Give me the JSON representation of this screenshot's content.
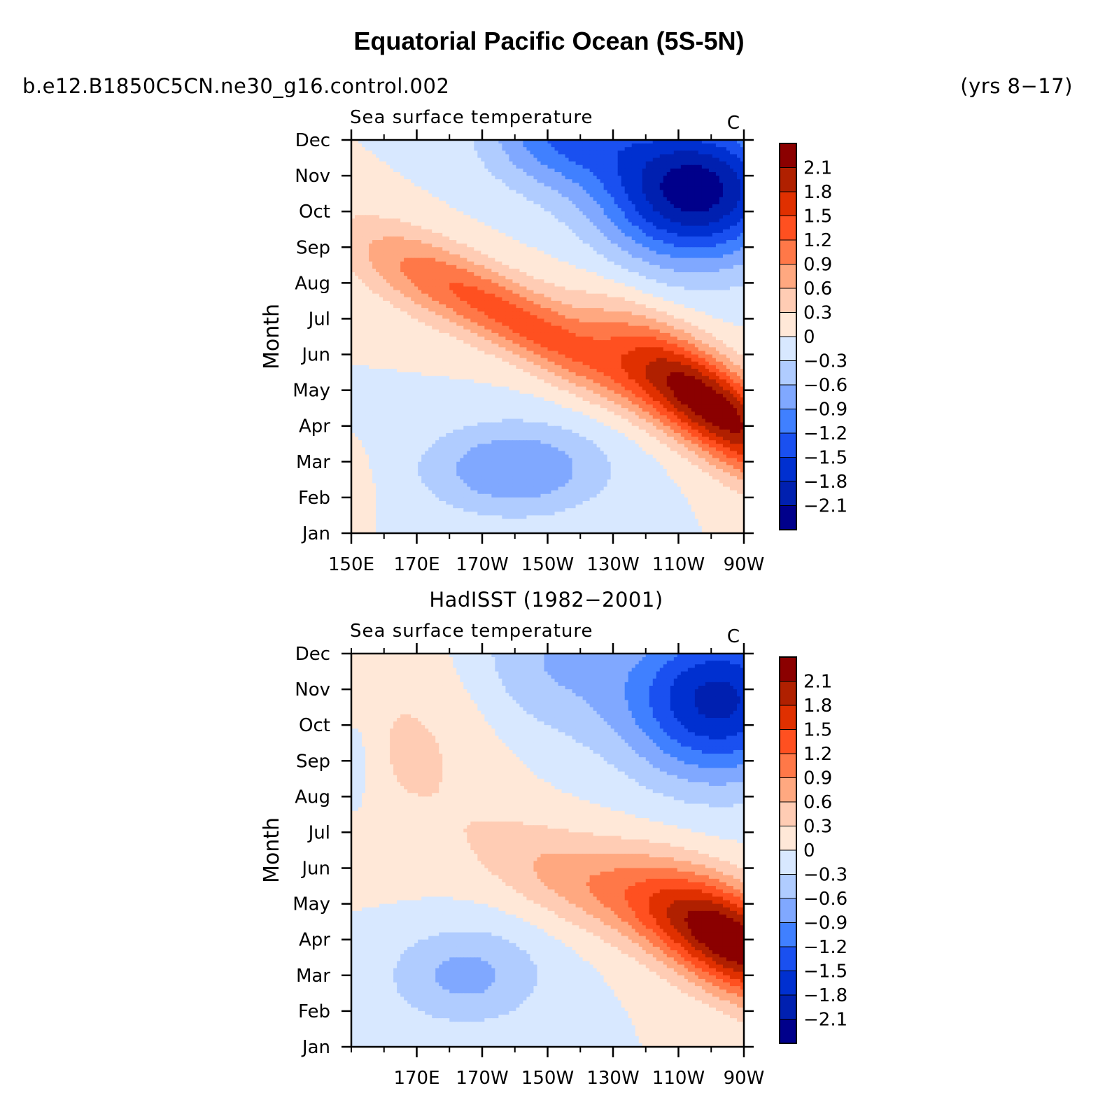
{
  "title": "Equatorial Pacific Ocean (5S-5N)",
  "case_name": "b.e12.B1850C5CN.ne30_g16.control.002",
  "years_label": "(yrs 8−17)",
  "obs_title": "HadISST (1982−2001)",
  "colors": {
    "levels": [
      "#00008b",
      "#0020b0",
      "#0030d0",
      "#1a50f0",
      "#4080ff",
      "#80a8ff",
      "#b0ccff",
      "#d8e8ff",
      "#ffe8d8",
      "#ffccb4",
      "#ffa880",
      "#ff7848",
      "#ff5020",
      "#e03000",
      "#b02000",
      "#8b0000"
    ]
  },
  "chart_data": [
    {
      "type": "heatmap",
      "name": "model",
      "subtitle_left": "Sea surface temperature",
      "subtitle_right": "C",
      "ylabel": "Month",
      "xlabel": "",
      "x_ticks": [
        "150E",
        "170E",
        "170W",
        "150W",
        "130W",
        "110W",
        "90W"
      ],
      "x_tick_values": [
        150,
        170,
        190,
        210,
        230,
        250,
        270
      ],
      "xlim": [
        150,
        270
      ],
      "y_ticks": [
        "Jan",
        "Feb",
        "Mar",
        "Apr",
        "May",
        "Jun",
        "Jul",
        "Aug",
        "Sep",
        "Oct",
        "Nov",
        "Dec"
      ],
      "colorbar_labels": [
        "2.1",
        "1.8",
        "1.5",
        "1.2",
        "0.9",
        "0.6",
        "0.3",
        "0",
        "−0.3",
        "−0.6",
        "−0.9",
        "−1.2",
        "−1.5",
        "−1.8",
        "−2.1"
      ],
      "levels": [
        -2.1,
        -1.8,
        -1.5,
        -1.2,
        -0.9,
        -0.6,
        -0.3,
        0,
        0.3,
        0.6,
        0.9,
        1.2,
        1.5,
        1.8,
        2.1
      ],
      "features": [
        {
          "lon": 260,
          "month": 3.6,
          "amp": 2.3,
          "lon_width": 30,
          "month_width": 1.4,
          "tilt": -0.06
        },
        {
          "lon": 208,
          "month": 5.6,
          "amp": 1.2,
          "lon_width": 34,
          "month_width": 1.1,
          "tilt": -0.05
        },
        {
          "lon": 170,
          "month": 7.2,
          "amp": 0.7,
          "lon_width": 26,
          "month_width": 1.2,
          "tilt": -0.04
        },
        {
          "lon": 255,
          "month": 9.6,
          "amp": -2.3,
          "lon_width": 28,
          "month_width": 2.0,
          "tilt": 0
        },
        {
          "lon": 215,
          "month": 11.3,
          "amp": -1.2,
          "lon_width": 24,
          "month_width": 1.6,
          "tilt": 0
        },
        {
          "lon": 200,
          "month": 1.8,
          "amp": -0.9,
          "lon_width": 28,
          "month_width": 1.3,
          "tilt": 0
        },
        {
          "lon": 150,
          "month": 1.2,
          "amp": 0.3,
          "lon_width": 6,
          "month_width": 1.0,
          "tilt": 0
        }
      ]
    },
    {
      "type": "heatmap",
      "name": "observations",
      "subtitle_left": "Sea surface temperature",
      "subtitle_right": "C",
      "ylabel": "Month",
      "xlabel": "",
      "x_ticks": [
        "170E",
        "170W",
        "150W",
        "130W",
        "110W",
        "90W"
      ],
      "x_tick_values": [
        170,
        190,
        210,
        230,
        250,
        270
      ],
      "xlim": [
        150,
        270
      ],
      "y_ticks": [
        "Jan",
        "Feb",
        "Mar",
        "Apr",
        "May",
        "Jun",
        "Jul",
        "Aug",
        "Sep",
        "Oct",
        "Nov",
        "Dec"
      ],
      "colorbar_labels": [
        "2.1",
        "1.8",
        "1.5",
        "1.2",
        "0.9",
        "0.6",
        "0.3",
        "0",
        "−0.3",
        "−0.6",
        "−0.9",
        "−1.2",
        "−1.5",
        "−1.8",
        "−2.1"
      ],
      "levels": [
        -2.1,
        -1.8,
        -1.5,
        -1.2,
        -0.9,
        -0.6,
        -0.3,
        0,
        0.3,
        0.6,
        0.9,
        1.2,
        1.5,
        1.8,
        2.1
      ],
      "features": [
        {
          "lon": 266,
          "month": 3.0,
          "amp": 2.4,
          "lon_width": 28,
          "month_width": 1.5,
          "tilt": -0.04
        },
        {
          "lon": 220,
          "month": 4.6,
          "amp": 0.7,
          "lon_width": 30,
          "month_width": 1.3,
          "tilt": -0.03
        },
        {
          "lon": 170,
          "month": 8.5,
          "amp": 0.35,
          "lon_width": 30,
          "month_width": 3.0,
          "tilt": 0
        },
        {
          "lon": 262,
          "month": 9.7,
          "amp": -1.9,
          "lon_width": 28,
          "month_width": 2.2,
          "tilt": 0
        },
        {
          "lon": 210,
          "month": 10.8,
          "amp": -0.6,
          "lon_width": 26,
          "month_width": 2.2,
          "tilt": 0
        },
        {
          "lon": 185,
          "month": 2.0,
          "amp": -0.7,
          "lon_width": 24,
          "month_width": 1.4,
          "tilt": 0
        },
        {
          "lon": 152,
          "month": 8.0,
          "amp": -0.3,
          "lon_width": 6,
          "month_width": 1.8,
          "tilt": 0
        }
      ]
    }
  ]
}
